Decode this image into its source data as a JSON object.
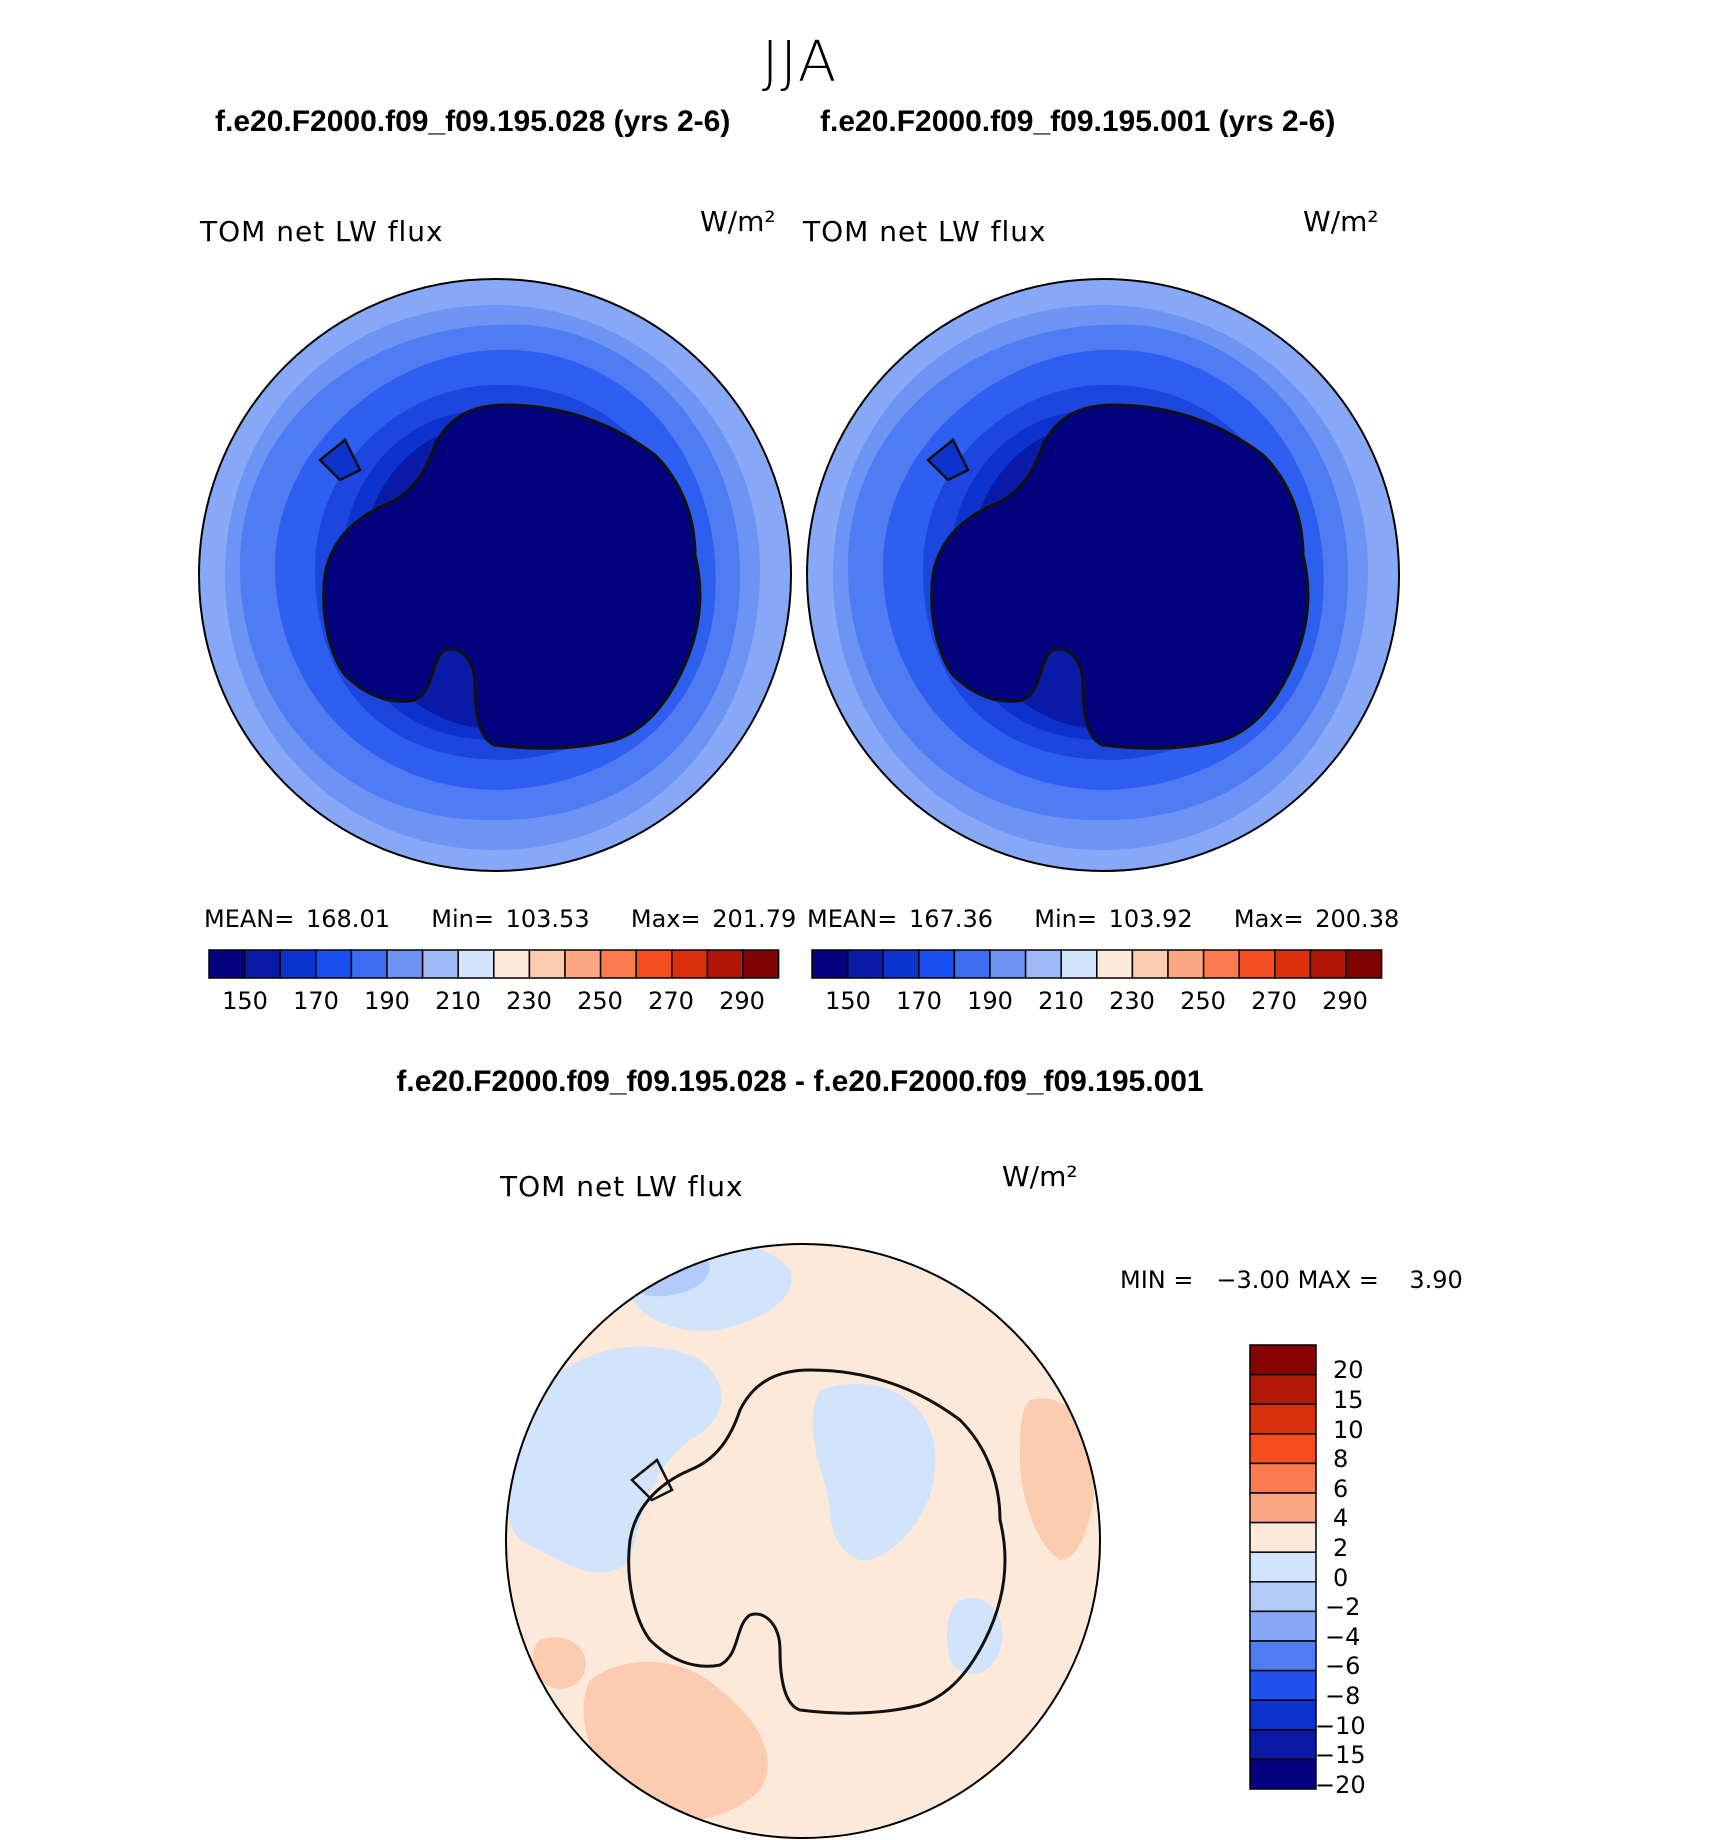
{
  "main_title": "JJA",
  "panels": [
    {
      "case_title": "f.e20.F2000.f09_f09.195.028 (yrs 2-6)",
      "variable": "TOM net LW flux",
      "units": "W/m²",
      "mean_label": "MEAN=",
      "mean": "168.01",
      "min_label": "Min=",
      "min": "103.53",
      "max_label": "Max=",
      "max": "201.79"
    },
    {
      "case_title": "f.e20.F2000.f09_f09.195.001 (yrs 2-6)",
      "variable": "TOM net LW flux",
      "units": "W/m²",
      "mean_label": "MEAN=",
      "mean": "167.36",
      "min_label": "Min=",
      "min": "103.92",
      "max_label": "Max=",
      "max": "200.38"
    }
  ],
  "abs_colorbar": {
    "colors": [
      "#03037f",
      "#0a1aa6",
      "#0c32cf",
      "#1a4ef0",
      "#3e6df2",
      "#6d94f5",
      "#9fbaf7",
      "#d2e4fb",
      "#fde9d9",
      "#fdcbb0",
      "#fca783",
      "#fb7a4e",
      "#f54d22",
      "#dc2f0c",
      "#b01707",
      "#7e0303"
    ],
    "tick_labels": [
      "150",
      "170",
      "190",
      "210",
      "230",
      "250",
      "270",
      "290"
    ]
  },
  "difference": {
    "title": "f.e20.F2000.f09_f09.195.028 - f.e20.F2000.f09_f09.195.001",
    "variable": "TOM net LW flux",
    "units": "W/m²",
    "min_label": "MIN =",
    "min": "−3.00",
    "max_label": "MAX =",
    "max": "3.90"
  },
  "diff_colorbar": {
    "colors": [
      "#880202",
      "#b31708",
      "#d9300c",
      "#f54d1e",
      "#fb7a4e",
      "#fca783",
      "#fde9d9",
      "#d2e4fb",
      "#b2cbf9",
      "#86a8f6",
      "#4f7cf3",
      "#1f52ef",
      "#0c32cf",
      "#0a1aa6",
      "#03037f"
    ],
    "tick_labels": [
      "20",
      "15",
      "10",
      "8",
      "6",
      "4",
      "2",
      "0",
      "−2",
      "−4",
      "−6",
      "−8",
      "−10",
      "−15",
      "−20"
    ]
  }
}
